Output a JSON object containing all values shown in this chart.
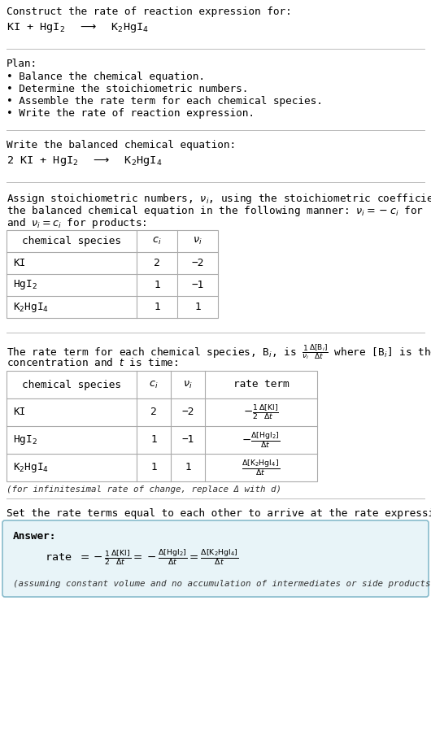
{
  "bg_color": "#ffffff",
  "text_color": "#000000",
  "section1_title": "Construct the rate of reaction expression for:",
  "section2_title": "Plan:",
  "section2_bullets": [
    "• Balance the chemical equation.",
    "• Determine the stoichiometric numbers.",
    "• Assemble the rate term for each chemical species.",
    "• Write the rate of reaction expression."
  ],
  "section3_title": "Write the balanced chemical equation:",
  "section4_intro1": "Assign stoichiometric numbers, $\\nu_i$, using the stoichiometric coefficients, $c_i$, from",
  "section4_intro2": "the balanced chemical equation in the following manner: $\\nu_i = -c_i$ for reactants",
  "section4_intro3": "and $\\nu_i = c_i$ for products:",
  "table1_headers": [
    "chemical species",
    "$c_i$",
    "$\\nu_i$"
  ],
  "table1_rows": [
    [
      "KI",
      "2",
      "−2"
    ],
    [
      "HgI$_2$",
      "1",
      "−1"
    ],
    [
      "K$_2$HgI$_4$",
      "1",
      "1"
    ]
  ],
  "table2_headers": [
    "chemical species",
    "$c_i$",
    "$\\nu_i$",
    "rate term"
  ],
  "table2_rows": [
    [
      "KI",
      "2",
      "−2",
      "$-\\frac{1}{2}\\frac{\\Delta[\\mathrm{KI}]}{\\Delta t}$"
    ],
    [
      "HgI$_2$",
      "1",
      "−1",
      "$-\\frac{\\Delta[\\mathrm{HgI}_2]}{\\Delta t}$"
    ],
    [
      "K$_2$HgI$_4$",
      "1",
      "1",
      "$\\frac{\\Delta[\\mathrm{K}_2\\mathrm{HgI}_4]}{\\Delta t}$"
    ]
  ],
  "section5_footnote": "(for infinitesimal rate of change, replace Δ with d)",
  "section6_title": "Set the rate terms equal to each other to arrive at the rate expression:",
  "answer_label": "Answer:",
  "answer_footnote": "(assuming constant volume and no accumulation of intermediates or side products)",
  "answer_box_color": "#e8f4f8",
  "answer_box_border": "#88bbcc",
  "line_color": "#bbbbbb",
  "table_line_color": "#aaaaaa"
}
